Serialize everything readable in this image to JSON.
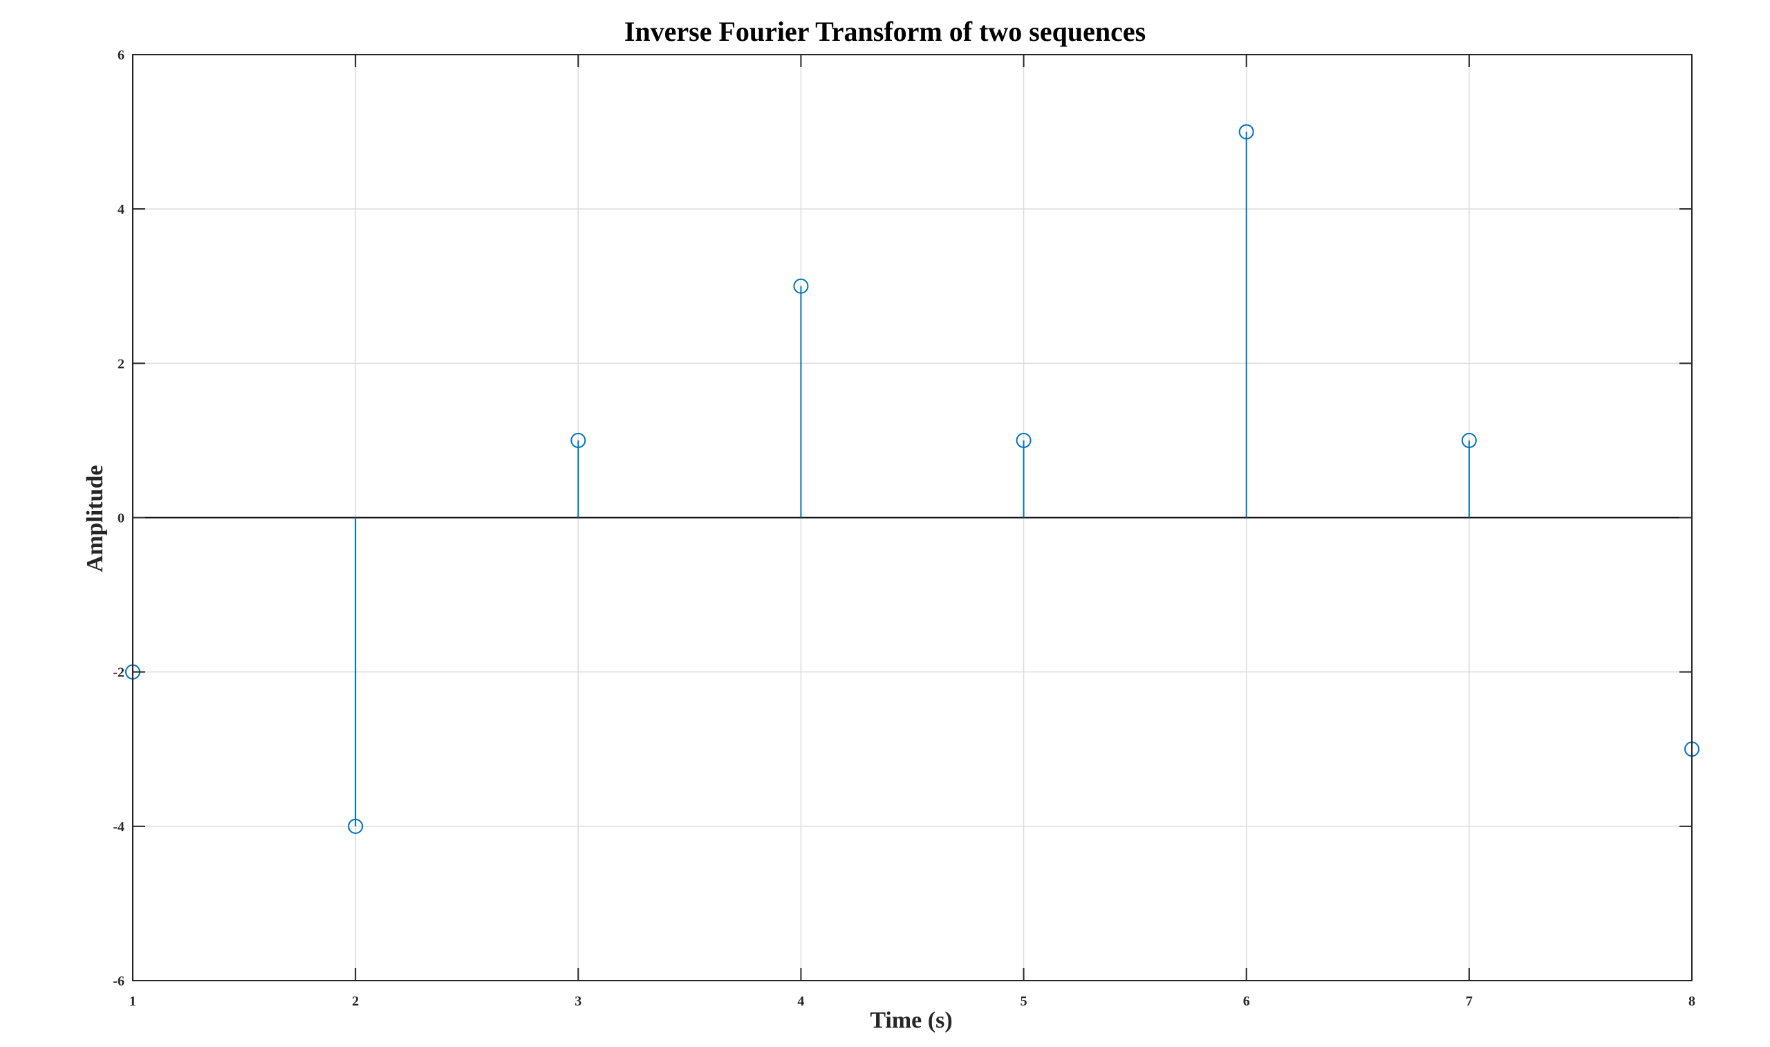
{
  "chart_data": {
    "type": "stem",
    "title": "Inverse Fourier Transform of two sequences",
    "xlabel": "Time (s)",
    "ylabel": "Amplitude",
    "x": [
      1,
      2,
      3,
      4,
      5,
      6,
      7,
      8
    ],
    "values": [
      -2,
      -4,
      1,
      3,
      1,
      5,
      1,
      -3
    ],
    "xlim": [
      1,
      8
    ],
    "ylim": [
      -6,
      6
    ],
    "xticks": [
      "1",
      "2",
      "3",
      "4",
      "5",
      "6",
      "7",
      "8"
    ],
    "yticks": [
      "-6",
      "-4",
      "-2",
      "0",
      "2",
      "4",
      "6"
    ],
    "grid": true,
    "marker": "open-circle",
    "color": "#0072BD"
  }
}
